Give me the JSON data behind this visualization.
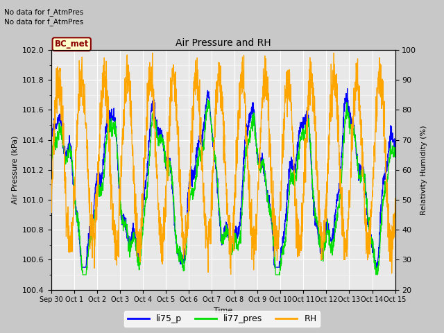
{
  "title": "Air Pressure and RH",
  "xlabel": "Time",
  "ylabel_left": "Air Pressure (kPa)",
  "ylabel_right": "Relativity Humidity (%)",
  "annotation_line1": "No data for f_AtmPres",
  "annotation_line2": "No data for f_AtmPres",
  "bc_met_label": "BC_met",
  "ylim_left": [
    100.4,
    102.0
  ],
  "ylim_right": [
    20,
    100
  ],
  "legend_entries": [
    "li75_p",
    "li77_pres",
    "RH"
  ],
  "line_colors": [
    "blue",
    "#00dd00",
    "orange"
  ],
  "fig_bg_color": "#c8c8c8",
  "plot_bg_color": "#e8e8e8",
  "yticks_left": [
    100.4,
    100.6,
    100.8,
    101.0,
    101.2,
    101.4,
    101.6,
    101.8,
    102.0
  ],
  "yticks_right": [
    20,
    30,
    40,
    50,
    60,
    70,
    80,
    90,
    100
  ],
  "tick_labels": [
    "Sep 30",
    "Oct 1",
    "Oct 2",
    "Oct 3",
    "Oct 4",
    "Oct 5",
    "Oct 6",
    "Oct 7",
    "Oct 8",
    "Oct 9",
    "Oct 10",
    "Oct 11",
    "Oct 12",
    "Oct 13",
    "Oct 14",
    "Oct 15"
  ],
  "tick_positions": [
    0,
    1,
    2,
    3,
    4,
    5,
    6,
    7,
    8,
    9,
    10,
    11,
    12,
    13,
    14,
    15
  ]
}
